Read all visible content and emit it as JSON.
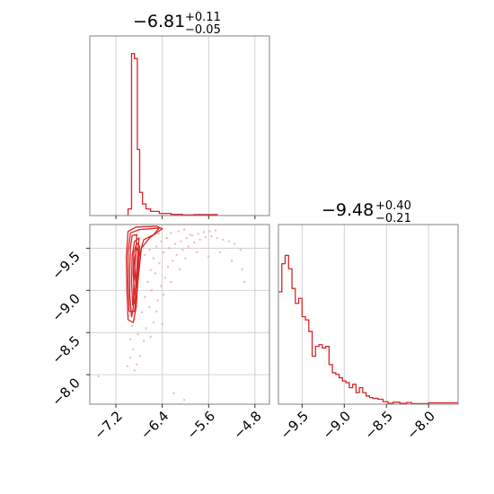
{
  "chart_data": [
    {
      "type": "histogram",
      "panel": "top-left",
      "title": {
        "median": "−6.81",
        "plus": "+0.11",
        "minus": "−0.05"
      },
      "xlim": [
        -7.65,
        -4.55
      ],
      "x_ticks": [
        -7.2,
        -6.4,
        -5.6,
        -4.8
      ],
      "x_tick_labels_shown": false,
      "y_ticks_shown": false,
      "grid": true,
      "color": "#d62728",
      "bins": [
        {
          "x0": -6.99,
          "x1": -6.93,
          "h": 0.04
        },
        {
          "x0": -6.93,
          "x1": -6.88,
          "h": 0.98
        },
        {
          "x0": -6.88,
          "x1": -6.83,
          "h": 0.95
        },
        {
          "x0": -6.83,
          "x1": -6.79,
          "h": 0.4
        },
        {
          "x0": -6.79,
          "x1": -6.74,
          "h": 0.14
        },
        {
          "x0": -6.74,
          "x1": -6.68,
          "h": 0.07
        },
        {
          "x0": -6.68,
          "x1": -6.6,
          "h": 0.04
        },
        {
          "x0": -6.6,
          "x1": -6.45,
          "h": 0.025
        },
        {
          "x0": -6.45,
          "x1": -6.25,
          "h": 0.013
        },
        {
          "x0": -6.25,
          "x1": -6.05,
          "h": 0.007
        },
        {
          "x0": -6.05,
          "x1": -5.85,
          "h": 0.004
        },
        {
          "x0": -5.85,
          "x1": -5.45,
          "h": 0.006
        }
      ]
    },
    {
      "type": "scatter",
      "panel": "bottom-left",
      "xlim": [
        -7.65,
        -4.55
      ],
      "ylim": [
        -9.78,
        -7.65
      ],
      "x_ticks": [
        -7.2,
        -6.4,
        -5.6,
        -4.8
      ],
      "x_tick_labels": [
        "−7.2",
        "−6.4",
        "−5.6",
        "−4.8"
      ],
      "y_ticks": [
        -8.0,
        -8.5,
        -9.0,
        -9.5
      ],
      "y_tick_labels": [
        "−8.0",
        "−8.5",
        "−9.0",
        "−9.5"
      ],
      "grid": true,
      "color": "#d62728",
      "contour_lines": [
        {
          "points": [
            [
              -6.93,
              -8.68
            ],
            [
              -6.96,
              -8.95
            ],
            [
              -6.96,
              -9.25
            ],
            [
              -6.95,
              -9.5
            ],
            [
              -6.92,
              -9.65
            ],
            [
              -6.84,
              -9.66
            ],
            [
              -6.86,
              -9.4
            ],
            [
              -6.89,
              -9.1
            ],
            [
              -6.9,
              -8.8
            ],
            [
              -6.93,
              -8.68
            ]
          ]
        },
        {
          "points": [
            [
              -6.91,
              -8.82
            ],
            [
              -6.93,
              -9.1
            ],
            [
              -6.92,
              -9.4
            ],
            [
              -6.88,
              -9.58
            ],
            [
              -6.8,
              -9.62
            ],
            [
              -6.83,
              -9.35
            ],
            [
              -6.86,
              -9.05
            ],
            [
              -6.88,
              -8.85
            ],
            [
              -6.91,
              -8.82
            ]
          ]
        },
        {
          "points": [
            [
              -6.88,
              -8.95
            ],
            [
              -6.9,
              -9.2
            ],
            [
              -6.89,
              -9.45
            ],
            [
              -6.84,
              -9.56
            ],
            [
              -6.79,
              -9.52
            ],
            [
              -6.82,
              -9.3
            ],
            [
              -6.85,
              -9.05
            ],
            [
              -6.88,
              -8.95
            ]
          ]
        },
        {
          "points": [
            [
              -6.97,
              -8.75
            ],
            [
              -6.99,
              -9.1
            ],
            [
              -6.99,
              -9.45
            ],
            [
              -6.95,
              -9.68
            ],
            [
              -6.8,
              -9.72
            ],
            [
              -6.6,
              -9.73
            ],
            [
              -6.45,
              -9.74
            ],
            [
              -6.55,
              -9.66
            ],
            [
              -6.72,
              -9.6
            ],
            [
              -6.8,
              -9.4
            ],
            [
              -6.84,
              -9.0
            ],
            [
              -6.88,
              -8.75
            ],
            [
              -6.97,
              -8.75
            ]
          ]
        },
        {
          "points": [
            [
              -6.86,
              -9.1
            ],
            [
              -6.88,
              -9.35
            ],
            [
              -6.84,
              -9.5
            ],
            [
              -6.8,
              -9.45
            ],
            [
              -6.83,
              -9.25
            ],
            [
              -6.86,
              -9.1
            ]
          ]
        },
        {
          "points": [
            [
              -6.99,
              -8.65
            ],
            [
              -7.01,
              -9.0
            ],
            [
              -7.02,
              -9.4
            ],
            [
              -6.99,
              -9.7
            ],
            [
              -6.85,
              -9.75
            ],
            [
              -6.5,
              -9.76
            ],
            [
              -6.4,
              -9.73
            ],
            [
              -6.62,
              -9.62
            ],
            [
              -6.76,
              -9.5
            ],
            [
              -6.82,
              -9.1
            ],
            [
              -6.85,
              -8.8
            ],
            [
              -6.9,
              -8.62
            ],
            [
              -6.99,
              -8.65
            ]
          ]
        }
      ],
      "points": [
        [
          -6.84,
          -8.12
        ],
        [
          -6.78,
          -8.22
        ],
        [
          -6.9,
          -8.3
        ],
        [
          -6.72,
          -8.4
        ],
        [
          -6.95,
          -8.42
        ],
        [
          -6.82,
          -8.48
        ],
        [
          -6.68,
          -8.55
        ],
        [
          -6.92,
          -8.58
        ],
        [
          -6.55,
          -8.62
        ],
        [
          -6.88,
          -8.66
        ],
        [
          -6.98,
          -8.7
        ],
        [
          -6.75,
          -8.74
        ],
        [
          -6.62,
          -8.8
        ],
        [
          -6.48,
          -8.88
        ],
        [
          -6.7,
          -8.92
        ],
        [
          -6.58,
          -9.0
        ],
        [
          -6.42,
          -9.05
        ],
        [
          -6.65,
          -9.1
        ],
        [
          -6.35,
          -9.15
        ],
        [
          -6.52,
          -9.2
        ],
        [
          -6.6,
          -9.24
        ],
        [
          -6.3,
          -9.28
        ],
        [
          -6.45,
          -9.32
        ],
        [
          -6.22,
          -9.35
        ],
        [
          -6.55,
          -9.38
        ],
        [
          -6.15,
          -9.42
        ],
        [
          -6.38,
          -9.45
        ],
        [
          -6.05,
          -9.48
        ],
        [
          -6.28,
          -9.5
        ],
        [
          -5.95,
          -9.52
        ],
        [
          -6.18,
          -9.55
        ],
        [
          -5.85,
          -9.57
        ],
        [
          -6.08,
          -9.58
        ],
        [
          -5.75,
          -9.6
        ],
        [
          -5.98,
          -9.62
        ],
        [
          -5.65,
          -9.63
        ],
        [
          -5.88,
          -9.65
        ],
        [
          -5.55,
          -9.64
        ],
        [
          -5.78,
          -9.67
        ],
        [
          -5.45,
          -9.62
        ],
        [
          -5.68,
          -9.69
        ],
        [
          -5.35,
          -9.6
        ],
        [
          -5.58,
          -9.7
        ],
        [
          -5.25,
          -9.58
        ],
        [
          -5.48,
          -9.71
        ],
        [
          -5.15,
          -9.55
        ],
        [
          -6.25,
          -9.68
        ],
        [
          -6.12,
          -9.7
        ],
        [
          -6.02,
          -9.72
        ],
        [
          -5.92,
          -9.66
        ],
        [
          -6.32,
          -9.62
        ],
        [
          -6.42,
          -9.58
        ],
        [
          -6.5,
          -9.52
        ],
        [
          -6.62,
          -9.48
        ],
        [
          -6.7,
          -9.42
        ],
        [
          -6.46,
          -9.67
        ],
        [
          -5.05,
          -9.48
        ],
        [
          -5.02,
          -9.25
        ],
        [
          -4.98,
          -9.1
        ],
        [
          -5.2,
          -9.35
        ],
        [
          -5.4,
          -9.45
        ],
        [
          -6.2,
          -7.78
        ],
        [
          -6.02,
          -7.7
        ],
        [
          -5.6,
          -9.4
        ],
        [
          -5.8,
          -9.45
        ],
        [
          -6.0,
          -9.38
        ],
        [
          -6.1,
          -9.25
        ],
        [
          -6.25,
          -9.1
        ],
        [
          -6.38,
          -8.95
        ],
        [
          -6.5,
          -8.75
        ],
        [
          -6.4,
          -8.6
        ],
        [
          -6.6,
          -8.45
        ],
        [
          -7.5,
          -7.98
        ],
        [
          -7.0,
          -8.1
        ],
        [
          -6.95,
          -8.2
        ],
        [
          -6.88,
          -8.05
        ]
      ]
    },
    {
      "type": "histogram",
      "panel": "bottom-right",
      "title": {
        "median": "−9.48",
        "plus": "+0.40",
        "minus": "−0.21"
      },
      "xlim": [
        -9.78,
        -7.65
      ],
      "x_ticks": [
        -9.5,
        -9.0,
        -8.5,
        -8.0
      ],
      "x_tick_labels": [
        "−9.5",
        "−9.0",
        "−8.5",
        "−8.0"
      ],
      "y_ticks_shown": false,
      "grid": true,
      "color": "#d62728",
      "bins": [
        {
          "x0": -9.78,
          "x1": -9.74,
          "h": 0.68
        },
        {
          "x0": -9.74,
          "x1": -9.7,
          "h": 0.85
        },
        {
          "x0": -9.7,
          "x1": -9.66,
          "h": 0.9
        },
        {
          "x0": -9.66,
          "x1": -9.62,
          "h": 0.82
        },
        {
          "x0": -9.62,
          "x1": -9.58,
          "h": 0.7
        },
        {
          "x0": -9.58,
          "x1": -9.54,
          "h": 0.61
        },
        {
          "x0": -9.54,
          "x1": -9.5,
          "h": 0.64
        },
        {
          "x0": -9.5,
          "x1": -9.46,
          "h": 0.53
        },
        {
          "x0": -9.46,
          "x1": -9.42,
          "h": 0.51
        },
        {
          "x0": -9.42,
          "x1": -9.38,
          "h": 0.44
        },
        {
          "x0": -9.38,
          "x1": -9.34,
          "h": 0.29
        },
        {
          "x0": -9.34,
          "x1": -9.3,
          "h": 0.35
        },
        {
          "x0": -9.3,
          "x1": -9.26,
          "h": 0.36
        },
        {
          "x0": -9.26,
          "x1": -9.22,
          "h": 0.34
        },
        {
          "x0": -9.22,
          "x1": -9.18,
          "h": 0.35
        },
        {
          "x0": -9.18,
          "x1": -9.14,
          "h": 0.24
        },
        {
          "x0": -9.14,
          "x1": -9.1,
          "h": 0.19
        },
        {
          "x0": -9.1,
          "x1": -9.06,
          "h": 0.18
        },
        {
          "x0": -9.06,
          "x1": -9.02,
          "h": 0.16
        },
        {
          "x0": -9.02,
          "x1": -8.98,
          "h": 0.14
        },
        {
          "x0": -8.98,
          "x1": -8.94,
          "h": 0.13
        },
        {
          "x0": -8.94,
          "x1": -8.9,
          "h": 0.1
        },
        {
          "x0": -8.9,
          "x1": -8.86,
          "h": 0.12
        },
        {
          "x0": -8.86,
          "x1": -8.82,
          "h": 0.07
        },
        {
          "x0": -8.82,
          "x1": -8.78,
          "h": 0.1
        },
        {
          "x0": -8.78,
          "x1": -8.74,
          "h": 0.07
        },
        {
          "x0": -8.74,
          "x1": -8.7,
          "h": 0.05
        },
        {
          "x0": -8.7,
          "x1": -8.66,
          "h": 0.04
        },
        {
          "x0": -8.66,
          "x1": -8.6,
          "h": 0.035
        },
        {
          "x0": -8.6,
          "x1": -8.54,
          "h": 0.03
        },
        {
          "x0": -8.54,
          "x1": -8.48,
          "h": 0.015
        },
        {
          "x0": -8.48,
          "x1": -8.42,
          "h": 0.005
        },
        {
          "x0": -8.42,
          "x1": -8.34,
          "h": 0.012
        },
        {
          "x0": -8.34,
          "x1": -8.26,
          "h": 0.005
        },
        {
          "x0": -8.26,
          "x1": -8.2,
          "h": 0.01
        },
        {
          "x0": -8.2,
          "x1": -8.0,
          "h": 0.003
        },
        {
          "x0": -8.0,
          "x1": -7.65,
          "h": 0.008
        }
      ]
    }
  ]
}
